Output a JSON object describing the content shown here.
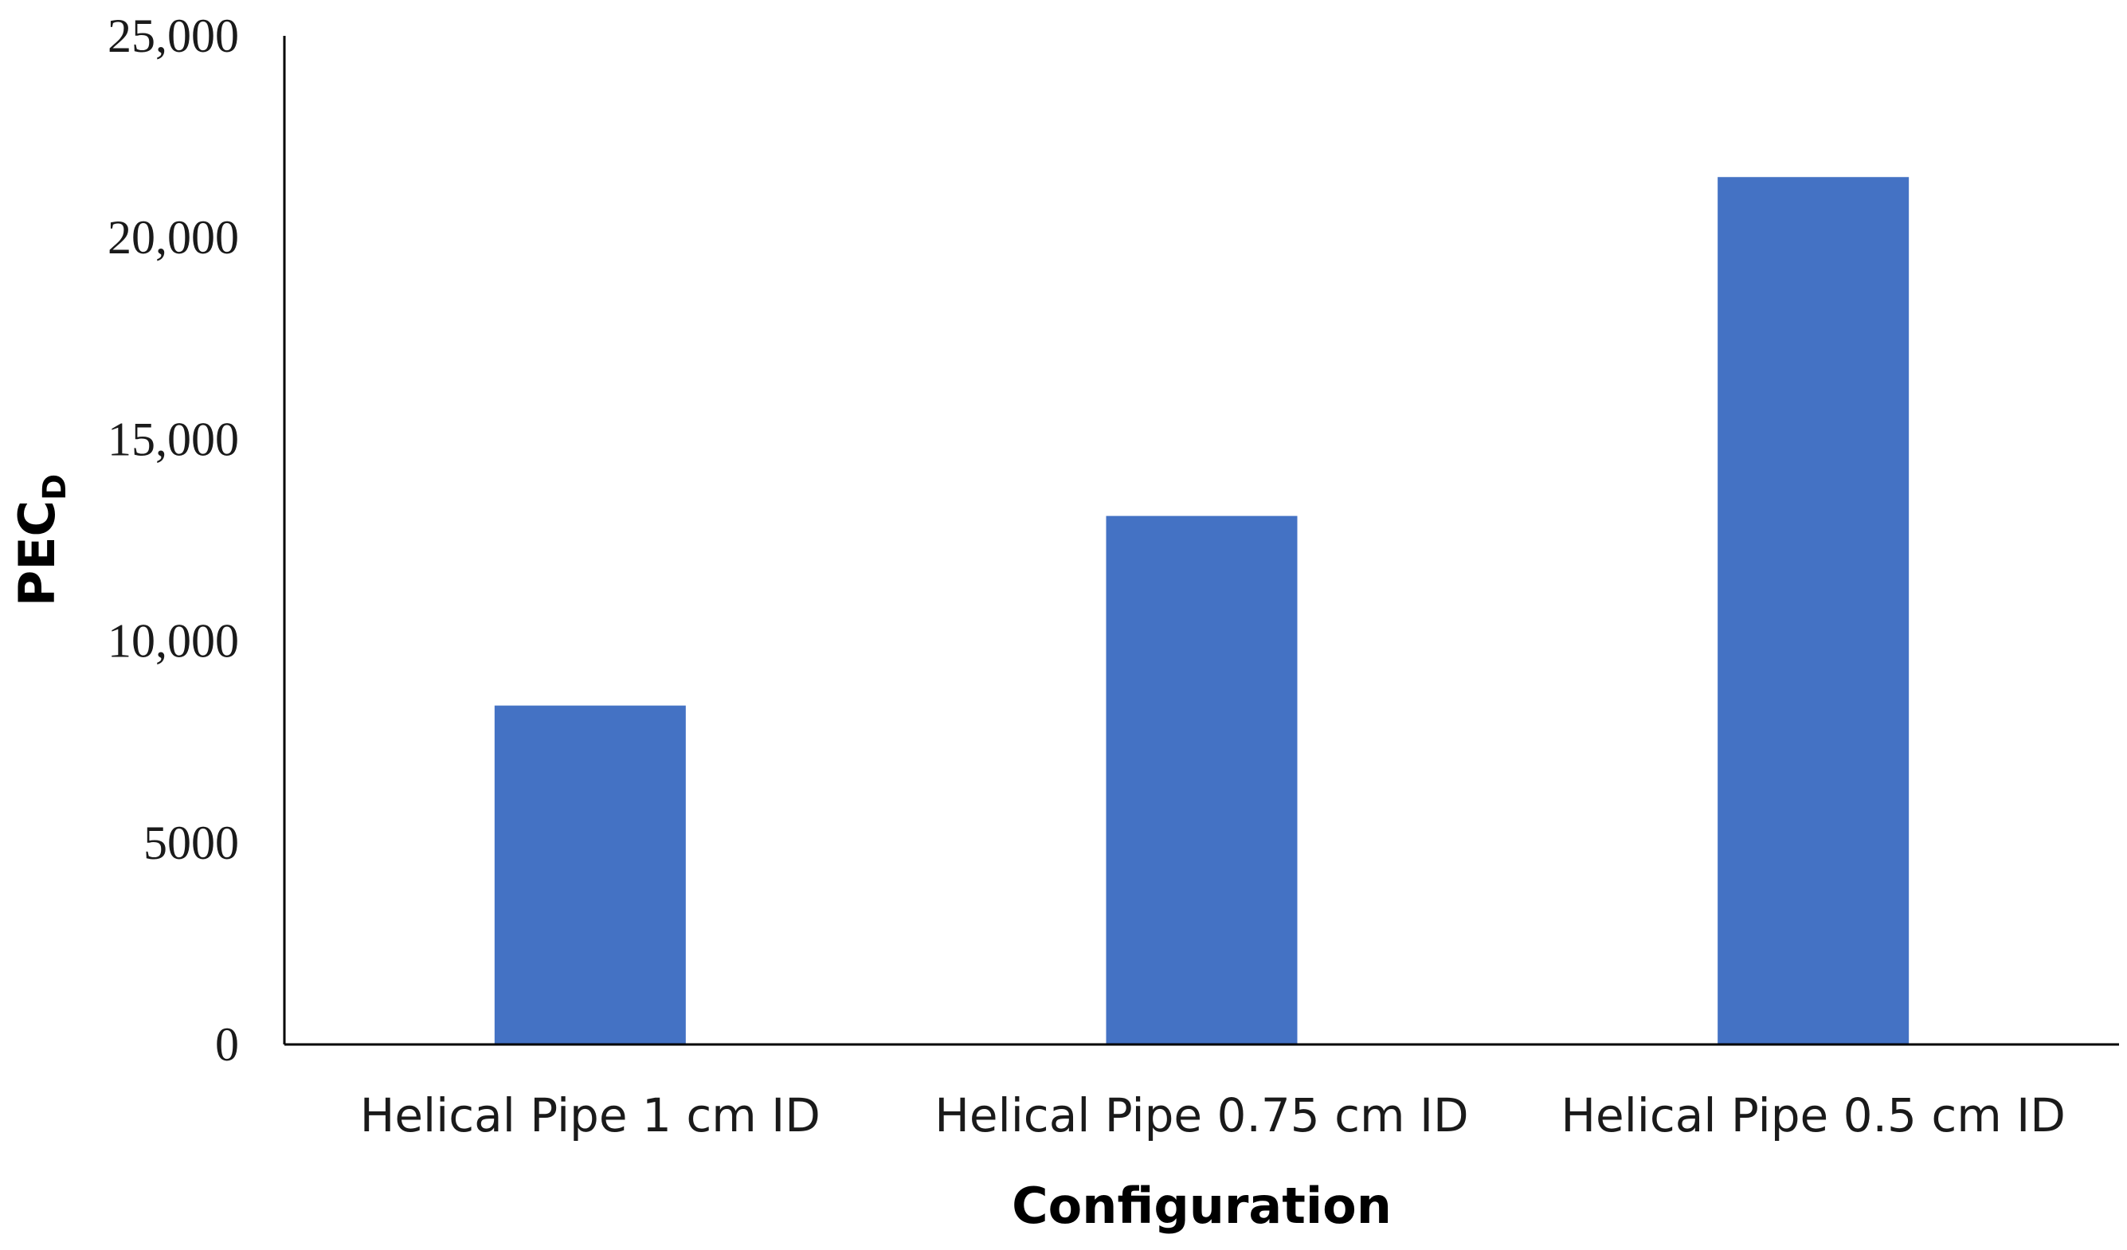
{
  "chart_data": {
    "type": "bar",
    "categories": [
      "Helical Pipe 1 cm ID",
      "Helical Pipe 0.75 cm ID",
      "Helical Pipe 0.5 cm ID"
    ],
    "values": [
      8400,
      13100,
      21500
    ],
    "title": "",
    "xlabel": "Configuration",
    "ylabel": "PEC",
    "ylabel_subscript": "D",
    "ylim": [
      0,
      25000
    ],
    "yticks": [
      0,
      5000,
      10000,
      15000,
      20000,
      25000
    ],
    "ytick_labels": [
      "0",
      "5000",
      "10,000",
      "15,000",
      "20,000",
      "25,000"
    ],
    "grid": false,
    "legend": "none",
    "bar_color": "#4472C4"
  }
}
